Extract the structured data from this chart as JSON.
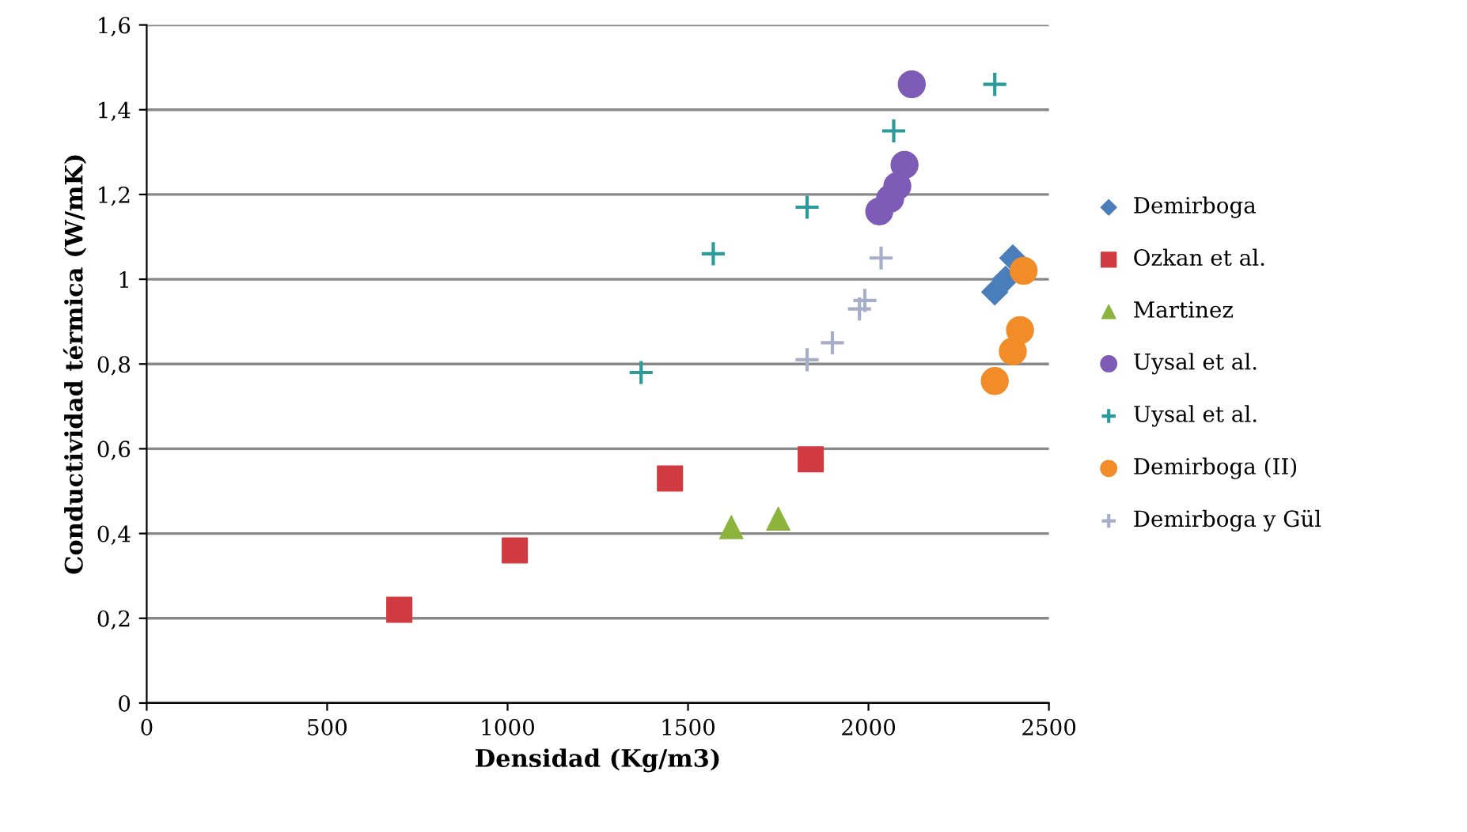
{
  "chart_data": {
    "type": "scatter",
    "xlabel": "Densidad (Kg/m3)",
    "ylabel": "Conductividad térmica (W/mK)",
    "xlim": [
      0,
      2500
    ],
    "xticks": [
      0,
      500,
      1000,
      1500,
      2000,
      2500
    ],
    "ylim": [
      0,
      1.6
    ],
    "yticks": [
      {
        "value": 0,
        "label": "0"
      },
      {
        "value": 0.2,
        "label": "0,2"
      },
      {
        "value": 0.4,
        "label": "0,4"
      },
      {
        "value": 0.6,
        "label": "0,6"
      },
      {
        "value": 0.8,
        "label": "0,8"
      },
      {
        "value": 1,
        "label": "1"
      },
      {
        "value": 1.2,
        "label": "1,2"
      },
      {
        "value": 1.4,
        "label": "1,4"
      },
      {
        "value": 1.6,
        "label": "1,6"
      }
    ],
    "grid": "y",
    "legend": "right",
    "series": [
      {
        "name": "Demirboga",
        "color": "#4a7ebb",
        "marker": "diamond",
        "x": [
          2350,
          2380,
          2400
        ],
        "values": [
          0.97,
          1.0,
          1.05
        ]
      },
      {
        "name": "Ozkan et al.",
        "color": "#d23a41",
        "marker": "square",
        "x": [
          700,
          1020,
          1450,
          1840
        ],
        "values": [
          0.22,
          0.36,
          0.53,
          0.575
        ]
      },
      {
        "name": "Martinez",
        "color": "#8cb43c",
        "marker": "triangle",
        "x": [
          1620,
          1750
        ],
        "values": [
          0.415,
          0.435
        ]
      },
      {
        "name": "Uysal et al.",
        "color": "#7f5bb8",
        "marker": "circle",
        "x": [
          2030,
          2060,
          2080,
          2100,
          2120
        ],
        "values": [
          1.16,
          1.19,
          1.22,
          1.27,
          1.46
        ]
      },
      {
        "name": "Uysal et al.",
        "color": "#2a9a9a",
        "marker": "cross",
        "x": [
          1370,
          1570,
          1830,
          2070,
          2350
        ],
        "values": [
          0.78,
          1.06,
          1.17,
          1.35,
          1.46
        ]
      },
      {
        "name": "Demirboga (II)",
        "color": "#f28c28",
        "marker": "circle",
        "x": [
          2350,
          2400,
          2420,
          2430
        ],
        "values": [
          0.76,
          0.83,
          0.88,
          1.02
        ]
      },
      {
        "name": "Demirboga y Gül",
        "color": "#a6aec8",
        "marker": "cross",
        "x": [
          1830,
          1900,
          1975,
          1990,
          2035
        ],
        "values": [
          0.81,
          0.85,
          0.93,
          0.95,
          1.05
        ]
      }
    ]
  }
}
